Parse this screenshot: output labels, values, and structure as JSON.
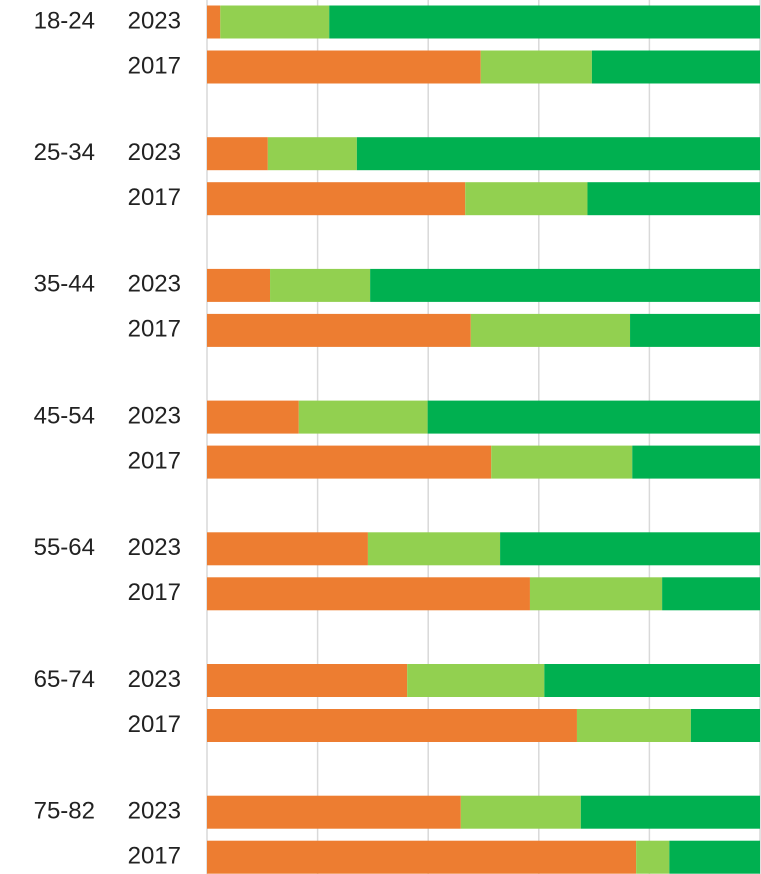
{
  "chart_data": {
    "type": "stacked-bar-horizontal",
    "groups": [
      "18-24",
      "25-34",
      "35-44",
      "45-54",
      "55-64",
      "65-74",
      "75-82"
    ],
    "categories": [
      "2023",
      "2017",
      "2023",
      "2017",
      "2023",
      "2017",
      "2023",
      "2017",
      "2023",
      "2017",
      "2023",
      "2017",
      "2023",
      "2017"
    ],
    "series": [
      {
        "color": "#ed7d31",
        "values": [
          2.4,
          49.5,
          11.0,
          46.7,
          11.4,
          47.7,
          16.6,
          51.4,
          29.1,
          58.4,
          36.2,
          66.9,
          45.9,
          77.6
        ]
      },
      {
        "color": "#92d050",
        "values": [
          19.7,
          20.1,
          16.1,
          22.1,
          18.1,
          28.8,
          23.3,
          25.5,
          23.9,
          23.9,
          24.8,
          20.6,
          21.7,
          6.0
        ]
      },
      {
        "color": "#00b050",
        "values": [
          77.9,
          30.4,
          72.9,
          31.2,
          70.5,
          23.5,
          60.1,
          23.1,
          47.0,
          17.7,
          39.0,
          12.5,
          32.4,
          16.4
        ]
      }
    ],
    "xlim": [
      0,
      100
    ],
    "xticks": [
      0,
      20,
      40,
      60,
      80,
      100
    ],
    "grid": true
  }
}
